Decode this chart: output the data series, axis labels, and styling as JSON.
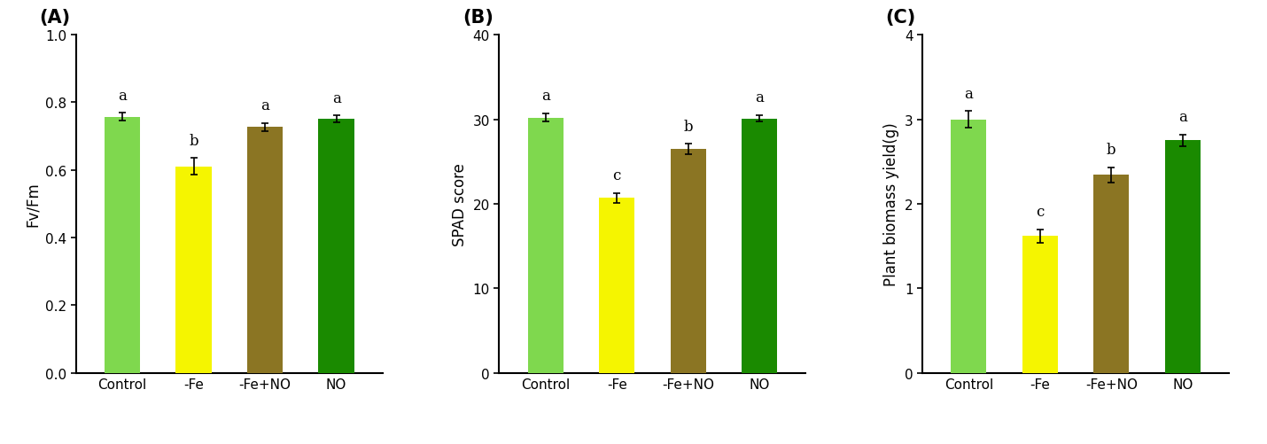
{
  "panels": [
    {
      "label": "(A)",
      "ylabel": "Fv/Fm",
      "ylim": [
        0.0,
        1.0
      ],
      "yticks": [
        0.0,
        0.2,
        0.4,
        0.6,
        0.8,
        1.0
      ],
      "categories": [
        "Control",
        "-Fe",
        "-Fe+NO",
        "NO"
      ],
      "values": [
        0.757,
        0.61,
        0.727,
        0.752
      ],
      "errors": [
        0.012,
        0.025,
        0.012,
        0.01
      ],
      "sig_labels": [
        "a",
        "b",
        "a",
        "a"
      ],
      "colors": [
        "#7FD84E",
        "#F5F500",
        "#8B7523",
        "#1A8A00"
      ]
    },
    {
      "label": "(B)",
      "ylabel": "SPAD score",
      "ylim": [
        0,
        40
      ],
      "yticks": [
        0,
        10,
        20,
        30,
        40
      ],
      "categories": [
        "Control",
        "-Fe",
        "-Fe+NO",
        "NO"
      ],
      "values": [
        30.2,
        20.7,
        26.5,
        30.1
      ],
      "errors": [
        0.5,
        0.6,
        0.6,
        0.4
      ],
      "sig_labels": [
        "a",
        "c",
        "b",
        "a"
      ],
      "colors": [
        "#7FD84E",
        "#F5F500",
        "#8B7523",
        "#1A8A00"
      ]
    },
    {
      "label": "(C)",
      "ylabel": "Plant biomass yield(g)",
      "ylim": [
        0,
        4
      ],
      "yticks": [
        0,
        1,
        2,
        3,
        4
      ],
      "categories": [
        "Control",
        "-Fe",
        "-Fe+NO",
        "NO"
      ],
      "values": [
        3.0,
        1.62,
        2.34,
        2.75
      ],
      "errors": [
        0.1,
        0.08,
        0.09,
        0.07
      ],
      "sig_labels": [
        "a",
        "c",
        "b",
        "a"
      ],
      "colors": [
        "#7FD84E",
        "#F5F500",
        "#8B7523",
        "#1A8A00"
      ]
    }
  ],
  "bar_width": 0.5,
  "bg_color": "#FFFFFF",
  "tick_fontsize": 11,
  "label_fontsize": 12,
  "panel_label_fontsize": 15,
  "sig_fontsize": 12,
  "error_capsize": 3,
  "error_linewidth": 1.2
}
